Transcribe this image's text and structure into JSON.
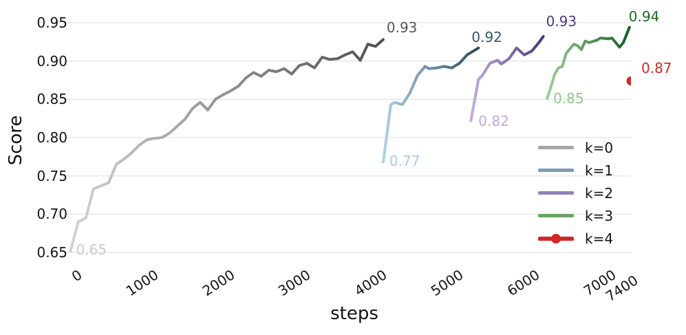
{
  "chart_data": {
    "type": "line",
    "title": "",
    "xlabel": "steps",
    "ylabel": "Score",
    "xlim": [
      0,
      7400
    ],
    "ylim": [
      0.65,
      0.95
    ],
    "grid": "horizontal",
    "grid_color": "#e9e9e9",
    "background": "#ffffff",
    "xticks": {
      "values": [
        0,
        1000,
        2000,
        3000,
        4000,
        5000,
        6000,
        7000,
        7400
      ],
      "labels": [
        "0",
        "1000",
        "2000",
        "3000",
        "4000",
        "5000",
        "6000",
        "7000",
        "7400"
      ]
    },
    "yticks": {
      "values": [
        0.65,
        0.7,
        0.75,
        0.8,
        0.85,
        0.9,
        0.95
      ],
      "labels": [
        "0.65",
        "0.70",
        "0.75",
        "0.80",
        "0.85",
        "0.90",
        "0.95"
      ]
    },
    "legend": {
      "position": "lower right",
      "entries": [
        {
          "label": "k=0",
          "color": "#a6a6a6",
          "marker": false
        },
        {
          "label": "k=1",
          "color": "#7d9cb5",
          "marker": false
        },
        {
          "label": "k=2",
          "color": "#9181bd",
          "marker": false
        },
        {
          "label": "k=3",
          "color": "#68a363",
          "marker": false
        },
        {
          "label": "k=4",
          "color": "#d62728",
          "marker": true
        }
      ]
    },
    "series": [
      {
        "name": "k=0",
        "color_start": "#d3d3d3",
        "color_end": "#4f4f4f",
        "start_label": {
          "text": "0.65",
          "color": "#cccccc"
        },
        "end_label": {
          "text": "0.93",
          "color": "#545454"
        },
        "steps": [
          50,
          150,
          250,
          350,
          450,
          550,
          650,
          750,
          850,
          950,
          1050,
          1150,
          1250,
          1350,
          1450,
          1550,
          1650,
          1750,
          1850,
          1950,
          2050,
          2150,
          2250,
          2350,
          2450,
          2550,
          2650,
          2750,
          2850,
          2950,
          3050,
          3150,
          3250,
          3350,
          3450,
          3550,
          3650,
          3750,
          3850,
          3950,
          4050,
          4150
        ],
        "scores": [
          0.652,
          0.69,
          0.695,
          0.733,
          0.737,
          0.741,
          0.765,
          0.772,
          0.78,
          0.79,
          0.797,
          0.799,
          0.8,
          0.806,
          0.815,
          0.824,
          0.838,
          0.846,
          0.836,
          0.85,
          0.856,
          0.861,
          0.867,
          0.878,
          0.885,
          0.88,
          0.888,
          0.886,
          0.89,
          0.883,
          0.894,
          0.897,
          0.891,
          0.905,
          0.902,
          0.903,
          0.908,
          0.912,
          0.901,
          0.922,
          0.919,
          0.928
        ]
      },
      {
        "name": "k=1",
        "color_start": "#aed2e8",
        "color_end": "#2e4a5e",
        "start_label": {
          "text": "0.77",
          "color": "#a9cde6"
        },
        "end_label": {
          "text": "0.92",
          "color": "#31566e"
        },
        "steps": [
          4150,
          4250,
          4300,
          4400,
          4500,
          4600,
          4700,
          4750,
          4850,
          4950,
          5050,
          5150,
          5250,
          5400
        ],
        "scores": [
          0.768,
          0.843,
          0.846,
          0.843,
          0.858,
          0.881,
          0.893,
          0.89,
          0.891,
          0.893,
          0.891,
          0.897,
          0.908,
          0.917
        ]
      },
      {
        "name": "k=2",
        "color_start": "#c3ace1",
        "color_end": "#453a7d",
        "start_label": {
          "text": "0.82",
          "color": "#bfa8e3"
        },
        "end_label": {
          "text": "0.93",
          "color": "#4b3c85"
        },
        "steps": [
          5300,
          5400,
          5450,
          5550,
          5650,
          5700,
          5800,
          5900,
          6000,
          6100,
          6200,
          6250
        ],
        "scores": [
          0.822,
          0.876,
          0.881,
          0.897,
          0.901,
          0.896,
          0.903,
          0.917,
          0.908,
          0.913,
          0.925,
          0.932
        ]
      },
      {
        "name": "k=3",
        "color_start": "#9ecf99",
        "color_end": "#14601f",
        "start_label": {
          "text": "0.85",
          "color": "#90c98c"
        },
        "end_label": {
          "text": "0.94",
          "color": "#1a691f"
        },
        "steps": [
          6300,
          6350,
          6400,
          6450,
          6500,
          6550,
          6650,
          6700,
          6750,
          6800,
          6850,
          6950,
          7000,
          7100,
          7150,
          7250,
          7300,
          7380
        ],
        "scores": [
          0.851,
          0.866,
          0.883,
          0.891,
          0.893,
          0.91,
          0.922,
          0.92,
          0.915,
          0.926,
          0.924,
          0.927,
          0.93,
          0.929,
          0.93,
          0.918,
          0.924,
          0.944
        ]
      },
      {
        "name": "k=4",
        "color_start": "#d62728",
        "color_end": "#d62728",
        "end_label": {
          "text": "0.87",
          "color": "#d62728"
        },
        "steps": [
          7400
        ],
        "scores": [
          0.874
        ]
      }
    ]
  }
}
